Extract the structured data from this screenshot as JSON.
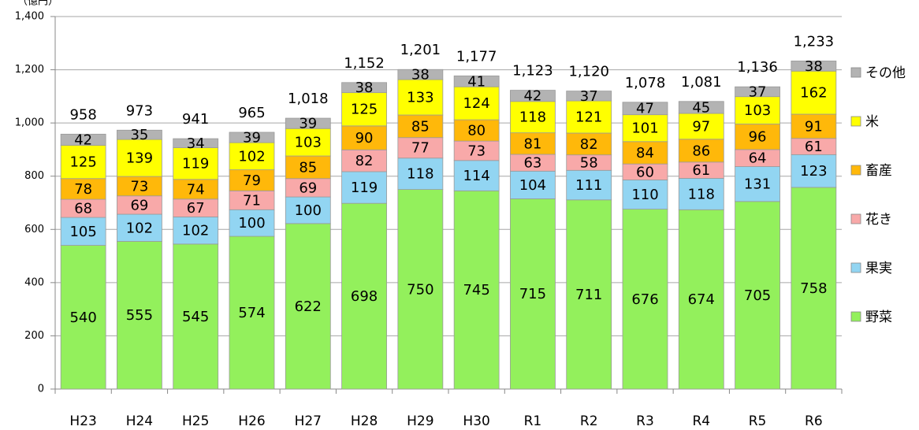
{
  "chart_data": {
    "type": "stacked_bar",
    "unit_label": "（億円）",
    "categories": [
      "H23",
      "H24",
      "H25",
      "H26",
      "H27",
      "H28",
      "H29",
      "H30",
      "R1",
      "R2",
      "R3",
      "R4",
      "R5",
      "R6"
    ],
    "series": [
      {
        "name": "野菜",
        "color": "#93f05c",
        "values": [
          540,
          555,
          545,
          574,
          622,
          698,
          750,
          745,
          715,
          711,
          676,
          674,
          705,
          758
        ]
      },
      {
        "name": "果実",
        "color": "#92d5f2",
        "values": [
          105,
          102,
          102,
          100,
          100,
          119,
          118,
          114,
          104,
          111,
          110,
          118,
          131,
          123
        ]
      },
      {
        "name": "花き",
        "color": "#f8a9a9",
        "values": [
          68,
          69,
          67,
          71,
          69,
          82,
          77,
          73,
          63,
          58,
          60,
          61,
          64,
          61
        ]
      },
      {
        "name": "畜産",
        "color": "#ffb80a",
        "values": [
          78,
          73,
          74,
          79,
          85,
          90,
          85,
          80,
          81,
          82,
          84,
          86,
          96,
          91
        ]
      },
      {
        "name": "米",
        "color": "#ffff00",
        "values": [
          125,
          139,
          119,
          102,
          103,
          125,
          133,
          124,
          118,
          121,
          101,
          97,
          103,
          162
        ]
      },
      {
        "name": "その他",
        "color": "#b3b3b3",
        "values": [
          42,
          35,
          34,
          39,
          39,
          38,
          38,
          41,
          42,
          37,
          47,
          45,
          37,
          38
        ]
      }
    ],
    "totals": [
      958,
      973,
      941,
      965,
      1018,
      1152,
      1201,
      1177,
      1123,
      1120,
      1078,
      1081,
      1136,
      1233
    ],
    "total_labels": [
      "958",
      "973",
      "941",
      "965",
      "1,018",
      "1,152",
      "1,201",
      "1,177",
      "1,123",
      "1,120",
      "1,078",
      "1,081",
      "1,136",
      "1,233"
    ],
    "ylim": [
      0,
      1400
    ],
    "yticks": [
      0,
      200,
      400,
      600,
      800,
      {
        "value": 1000,
        "label": "1,000"
      },
      {
        "value": 1200,
        "label": "1,200"
      },
      {
        "value": 1400,
        "label": "1,400"
      }
    ],
    "grid": true,
    "legend": "right"
  }
}
